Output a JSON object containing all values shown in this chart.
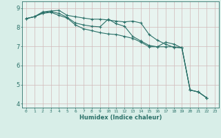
{
  "xlabel": "Humidex (Indice chaleur)",
  "background_color": "#d8eee8",
  "grid_color": "#c8d8c8",
  "line_color": "#2a7068",
  "plot_bg": "#e8f4f0",
  "xlim": [
    -0.5,
    23.5
  ],
  "ylim": [
    3.8,
    9.35
  ],
  "yticks": [
    4,
    5,
    6,
    7,
    8,
    9
  ],
  "xtick_labels": [
    "0",
    "1",
    "2",
    "3",
    "4",
    "5",
    "6",
    "7",
    "8",
    "9",
    "10",
    "11",
    "12",
    "13",
    "14",
    "15",
    "16",
    "17",
    "18",
    "19",
    "20",
    "21",
    "22",
    "23"
  ],
  "series": [
    [
      8.45,
      8.55,
      8.8,
      8.85,
      8.88,
      8.62,
      8.55,
      8.48,
      8.42,
      8.42,
      8.38,
      8.32,
      8.28,
      8.32,
      8.22,
      7.62,
      7.32,
      7.12,
      6.95,
      6.92,
      4.72,
      4.62,
      4.32
    ],
    [
      8.45,
      8.55,
      8.75,
      8.82,
      8.72,
      8.52,
      8.22,
      8.12,
      8.05,
      8.02,
      8.42,
      8.18,
      8.05,
      7.52,
      7.28,
      7.05,
      6.98,
      7.22,
      7.12,
      6.92,
      4.72,
      4.62,
      4.32
    ],
    [
      8.45,
      8.55,
      8.72,
      8.78,
      8.62,
      8.48,
      8.12,
      7.92,
      7.82,
      7.72,
      7.65,
      7.62,
      7.52,
      7.42,
      7.22,
      6.98,
      6.98,
      6.98,
      6.98,
      6.92,
      4.72,
      4.62,
      4.32
    ]
  ]
}
